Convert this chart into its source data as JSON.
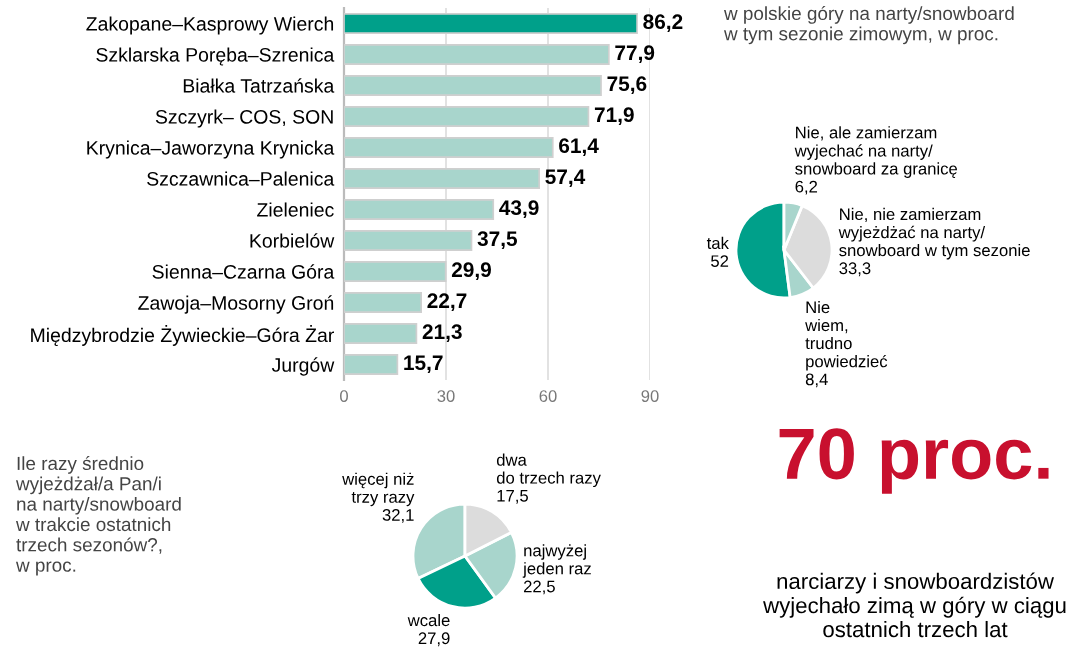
{
  "chart_data": [
    {
      "type": "bar",
      "orientation": "horizontal",
      "categories": [
        "Zakopane–Kasprowy Wierch",
        "Szklarska Poręba–Szrenica",
        "Białka Tatrzańska",
        "Szczyrk– COS, SON",
        "Krynica–Jaworzyna Krynicka",
        "Szczawnica–Palenica",
        "Zieleniec",
        "Korbielów",
        "Sienna–Czarna Góra",
        "Zawoja–Mosorny Groń",
        "Międzybrodzie Żywieckie–Góra Żar",
        "Jurgów"
      ],
      "values": [
        86.2,
        77.9,
        75.6,
        71.9,
        61.4,
        57.4,
        43.9,
        37.5,
        29.9,
        22.7,
        21.3,
        15.7
      ],
      "value_labels": [
        "86,2",
        "77,9",
        "75,6",
        "71,9",
        "61,4",
        "57,4",
        "43,9",
        "37,5",
        "29,9",
        "22,7",
        "21,3",
        "15,7"
      ],
      "colors": [
        "#00a08a",
        "#a8d5cc",
        "#a8d5cc",
        "#a8d5cc",
        "#a8d5cc",
        "#a8d5cc",
        "#a8d5cc",
        "#a8d5cc",
        "#a8d5cc",
        "#a8d5cc",
        "#a8d5cc",
        "#a8d5cc"
      ],
      "xlim": [
        0,
        90
      ],
      "xticks": [
        0,
        30,
        60,
        90
      ],
      "grid": "x"
    },
    {
      "type": "pie",
      "title": "w polskie góry na narty/snowboard\nw tym sezonie zimowym, w proc.",
      "categories": [
        "tak",
        "Nie\nwiem,\ntrudno\npowiedzieć",
        "Nie, nie zamierzam\nwyjeżdżać na narty/\nsnowboard w tym sezonie",
        "Nie, ale zamierzam\nwyjechać na narty/\nsnowboard za granicę"
      ],
      "values": [
        52,
        8.4,
        33.3,
        6.2
      ],
      "value_labels": [
        "52",
        "8,4",
        "33,3",
        "6,2"
      ],
      "colors": [
        "#00a08a",
        "#a8d5cc",
        "#dcdcdc",
        "#a8d5cc"
      ]
    },
    {
      "type": "pie",
      "title": "Ile razy średnio\nwyjeżdżał/a Pan/i\nna narty/snowboard\nw trakcie ostatnich\ntrzech sezonów?,\nw proc.",
      "categories": [
        "więcej niż\ntrzy razy",
        "wcale",
        "najwyżej\njeden raz",
        "dwa\ndo trzech razy"
      ],
      "values": [
        32.1,
        27.9,
        22.5,
        17.5
      ],
      "value_labels": [
        "32,1",
        "27,9",
        "22,5",
        "17,5"
      ],
      "colors": [
        "#a8d5cc",
        "#00a08a",
        "#a8d5cc",
        "#dcdcdc"
      ]
    },
    {
      "type": "other",
      "annotations": [
        "70 proc.",
        "narciarzy i snowboardzistów wyjechało zimą w góry w ciągu ostatnich trzech lat"
      ]
    }
  ]
}
